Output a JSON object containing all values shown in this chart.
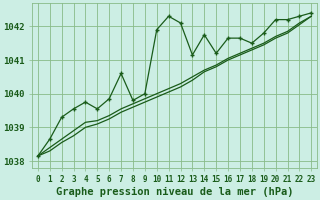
{
  "bg_color": "#cceee4",
  "grid_color": "#88bb88",
  "line_color": "#1a5c1a",
  "title": "Graphe pression niveau de la mer (hPa)",
  "xlim": [
    -0.5,
    23.5
  ],
  "ylim": [
    1037.8,
    1042.7
  ],
  "yticks": [
    1038,
    1039,
    1040,
    1041,
    1042
  ],
  "xticks": [
    0,
    1,
    2,
    3,
    4,
    5,
    6,
    7,
    8,
    9,
    10,
    11,
    12,
    13,
    14,
    15,
    16,
    17,
    18,
    19,
    20,
    21,
    22,
    23
  ],
  "series1_x": [
    0,
    1,
    2,
    3,
    4,
    5,
    6,
    7,
    8,
    9,
    10,
    11,
    12,
    13,
    14,
    15,
    16,
    17,
    18,
    19,
    20,
    21,
    22,
    23
  ],
  "series1_y": [
    1038.15,
    1038.65,
    1039.3,
    1039.55,
    1039.75,
    1039.55,
    1039.85,
    1040.6,
    1039.8,
    1040.0,
    1041.9,
    1042.3,
    1042.1,
    1041.15,
    1041.75,
    1041.2,
    1041.65,
    1041.65,
    1041.5,
    1041.8,
    1042.2,
    1042.2,
    1042.3,
    1042.4
  ],
  "series2_x": [
    0,
    1,
    2,
    3,
    4,
    5,
    6,
    7,
    8,
    9,
    10,
    11,
    12,
    13,
    14,
    15,
    16,
    17,
    18,
    19,
    20,
    21,
    22,
    23
  ],
  "series2_y": [
    1038.15,
    1038.4,
    1038.65,
    1038.9,
    1039.15,
    1039.2,
    1039.35,
    1039.55,
    1039.7,
    1039.85,
    1040.0,
    1040.15,
    1040.3,
    1040.5,
    1040.7,
    1040.85,
    1041.05,
    1041.2,
    1041.35,
    1041.5,
    1041.7,
    1041.85,
    1042.1,
    1042.3
  ],
  "series3_x": [
    0,
    1,
    2,
    3,
    4,
    5,
    6,
    7,
    8,
    9,
    10,
    11,
    12,
    13,
    14,
    15,
    16,
    17,
    18,
    19,
    20,
    21,
    22,
    23
  ],
  "series3_y": [
    1038.15,
    1038.3,
    1038.55,
    1038.75,
    1039.0,
    1039.1,
    1039.25,
    1039.45,
    1039.6,
    1039.75,
    1039.9,
    1040.05,
    1040.2,
    1040.4,
    1040.65,
    1040.8,
    1041.0,
    1041.15,
    1041.3,
    1041.45,
    1041.65,
    1041.8,
    1042.05,
    1042.3
  ],
  "title_fontsize": 7.5,
  "tick_fontsize": 5.5,
  "ytick_fontsize": 6.5
}
